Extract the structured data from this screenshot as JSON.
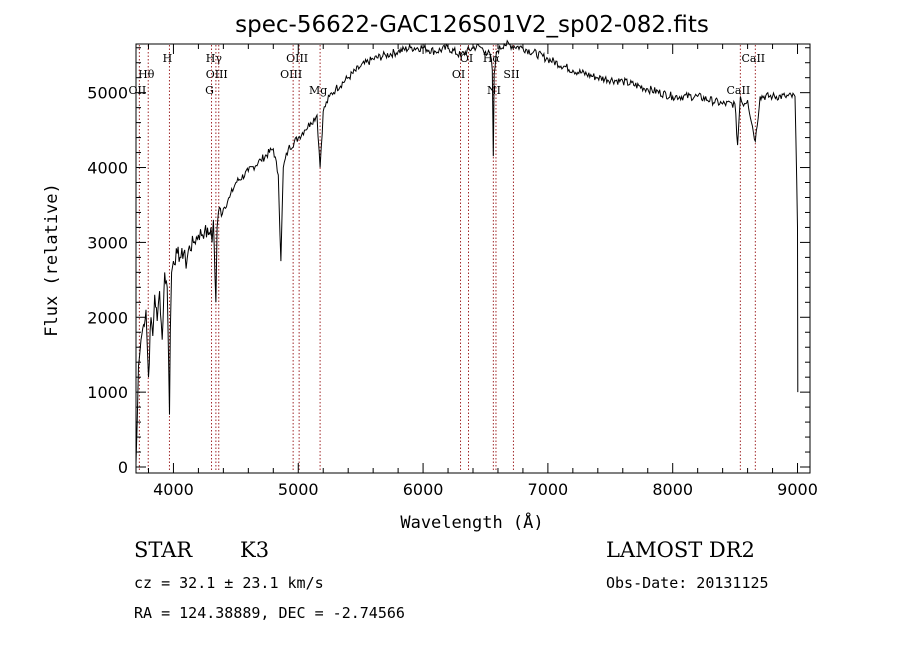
{
  "chart_data": {
    "type": "line",
    "title": "spec-56622-GAC126S01V2_sp02-082.fits",
    "xlabel": "Wavelength (Å)",
    "ylabel": "Flux (relative)",
    "xlim": [
      3700,
      9100
    ],
    "ylim": [
      -80,
      5650
    ],
    "xticks": [
      4000,
      5000,
      6000,
      7000,
      8000,
      9000
    ],
    "yticks": [
      0,
      1000,
      2000,
      3000,
      4000,
      5000
    ],
    "grid": false,
    "line_color": "#000000",
    "marker_color": "#a0282a",
    "spectrum": {
      "x": [
        3700,
        3710,
        3720,
        3730,
        3740,
        3760,
        3780,
        3800,
        3820,
        3835,
        3850,
        3870,
        3889,
        3910,
        3930,
        3950,
        3960,
        3968,
        3975,
        3985,
        4000,
        4030,
        4060,
        4090,
        4101,
        4120,
        4160,
        4200,
        4250,
        4280,
        4300,
        4310,
        4320,
        4340,
        4350,
        4360,
        4400,
        4450,
        4500,
        4600,
        4700,
        4800,
        4840,
        4861,
        4880,
        4920,
        5000,
        5050,
        5100,
        5150,
        5175,
        5200,
        5250,
        5300,
        5400,
        5500,
        5600,
        5700,
        5800,
        5900,
        6000,
        6100,
        6200,
        6300,
        6400,
        6450,
        6500,
        6540,
        6555,
        6563,
        6570,
        6590,
        6650,
        6800,
        7000,
        7200,
        7400,
        7600,
        7800,
        8000,
        8200,
        8400,
        8498,
        8520,
        8542,
        8560,
        8600,
        8662,
        8700,
        8800,
        8900,
        8980,
        9000,
        9002
      ],
      "y": [
        50,
        600,
        1350,
        1500,
        1700,
        1900,
        2100,
        1200,
        2000,
        1750,
        2300,
        1950,
        2350,
        1700,
        2600,
        2400,
        1500,
        700,
        1800,
        2600,
        2750,
        2850,
        2800,
        2900,
        2650,
        2900,
        3000,
        3100,
        3150,
        3100,
        3200,
        3000,
        3300,
        2200,
        3200,
        3400,
        3450,
        3600,
        3800,
        3950,
        4100,
        4250,
        3900,
        2750,
        4000,
        4250,
        4400,
        4500,
        4600,
        4700,
        4000,
        4750,
        4950,
        5050,
        5200,
        5350,
        5450,
        5500,
        5550,
        5600,
        5600,
        5550,
        5600,
        5500,
        5600,
        5620,
        5550,
        5500,
        5300,
        4150,
        5250,
        5550,
        5650,
        5600,
        5450,
        5300,
        5200,
        5150,
        5050,
        4950,
        4950,
        4850,
        4850,
        4300,
        4950,
        4850,
        4900,
        4350,
        4950,
        4950,
        4950,
        4950,
        3200,
        1000
      ]
    },
    "spectral_lines": [
      {
        "label": "Hγ",
        "wl": 4340
      },
      {
        "label": "Hθ",
        "wl": 3798
      },
      {
        "label": "OII",
        "wl": 3727
      },
      {
        "label": "H",
        "wl": 3968
      },
      {
        "label": "OIII",
        "wl": 4363
      },
      {
        "label": "G",
        "wl": 4305
      },
      {
        "label": "OIII",
        "wl": 5007
      },
      {
        "label": "OIII",
        "wl": 4959
      },
      {
        "label": "Mg",
        "wl": 5175
      },
      {
        "label": "OI",
        "wl": 6364
      },
      {
        "label": "OI",
        "wl": 6300
      },
      {
        "label": "NI",
        "wl": 6584
      },
      {
        "label": "Hα",
        "wl": 6563
      },
      {
        "label": "SII",
        "wl": 6724
      },
      {
        "label": "CaII",
        "wl": 8542
      },
      {
        "label": "CaII",
        "wl": 8662
      }
    ]
  },
  "info": {
    "object_class": "STAR",
    "subclass": "K3",
    "survey": "LAMOST DR2",
    "redshift": "cz = 32.1 ± 23.1 km/s",
    "obs_date": "Obs-Date: 20131125",
    "coords": "RA = 124.38889, DEC =  -2.74566"
  }
}
